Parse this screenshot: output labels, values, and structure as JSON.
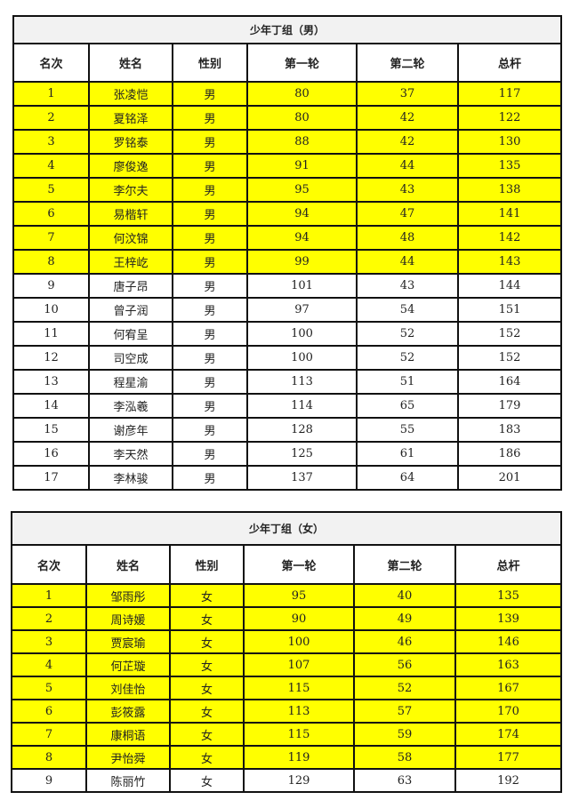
{
  "tables": [
    {
      "title": "少年丁组（男）",
      "headers": [
        "名次",
        "姓名",
        "性别",
        "第一轮",
        "第二轮",
        "总杆"
      ],
      "highlight_color": "#ffff00",
      "highlighted_ranks": [
        1,
        2,
        3,
        4,
        5,
        6,
        7,
        8
      ],
      "rows": [
        [
          "1",
          "张凌恺",
          "男",
          "80",
          "37",
          "117"
        ],
        [
          "2",
          "夏铭泽",
          "男",
          "80",
          "42",
          "122"
        ],
        [
          "3",
          "罗铭泰",
          "男",
          "88",
          "42",
          "130"
        ],
        [
          "4",
          "廖俊逸",
          "男",
          "91",
          "44",
          "135"
        ],
        [
          "5",
          "李尔夫",
          "男",
          "95",
          "43",
          "138"
        ],
        [
          "6",
          "易楷轩",
          "男",
          "94",
          "47",
          "141"
        ],
        [
          "7",
          "何汶锦",
          "男",
          "94",
          "48",
          "142"
        ],
        [
          "8",
          "王梓屹",
          "男",
          "99",
          "44",
          "143"
        ],
        [
          "9",
          "唐子昂",
          "男",
          "101",
          "43",
          "144"
        ],
        [
          "10",
          "曾子润",
          "男",
          "97",
          "54",
          "151"
        ],
        [
          "11",
          "何宥呈",
          "男",
          "100",
          "52",
          "152"
        ],
        [
          "12",
          "司空成",
          "男",
          "100",
          "52",
          "152"
        ],
        [
          "13",
          "程星渝",
          "男",
          "113",
          "51",
          "164"
        ],
        [
          "14",
          "李泓羲",
          "男",
          "114",
          "65",
          "179"
        ],
        [
          "15",
          "谢彦年",
          "男",
          "128",
          "55",
          "183"
        ],
        [
          "16",
          "李天然",
          "男",
          "125",
          "61",
          "186"
        ],
        [
          "17",
          "李林骏",
          "男",
          "137",
          "64",
          "201"
        ]
      ]
    },
    {
      "title": "少年丁组（女）",
      "headers": [
        "名次",
        "姓名",
        "性别",
        "第一轮",
        "第二轮",
        "总杆"
      ],
      "highlight_color": "#ffff00",
      "highlighted_ranks": [
        1,
        2,
        3,
        4,
        5,
        6,
        7,
        8
      ],
      "rows": [
        [
          "1",
          "邹雨彤",
          "女",
          "95",
          "40",
          "135"
        ],
        [
          "2",
          "周诗媛",
          "女",
          "90",
          "49",
          "139"
        ],
        [
          "3",
          "贾宸瑜",
          "女",
          "100",
          "46",
          "146"
        ],
        [
          "4",
          "何芷璇",
          "女",
          "107",
          "56",
          "163"
        ],
        [
          "5",
          "刘佳怡",
          "女",
          "115",
          "52",
          "167"
        ],
        [
          "6",
          "彭筱露",
          "女",
          "113",
          "57",
          "170"
        ],
        [
          "7",
          "康桐语",
          "女",
          "115",
          "59",
          "174"
        ],
        [
          "8",
          "尹怡舜",
          "女",
          "119",
          "58",
          "177"
        ],
        [
          "9",
          "陈丽竹",
          "女",
          "129",
          "63",
          "192"
        ]
      ]
    }
  ]
}
